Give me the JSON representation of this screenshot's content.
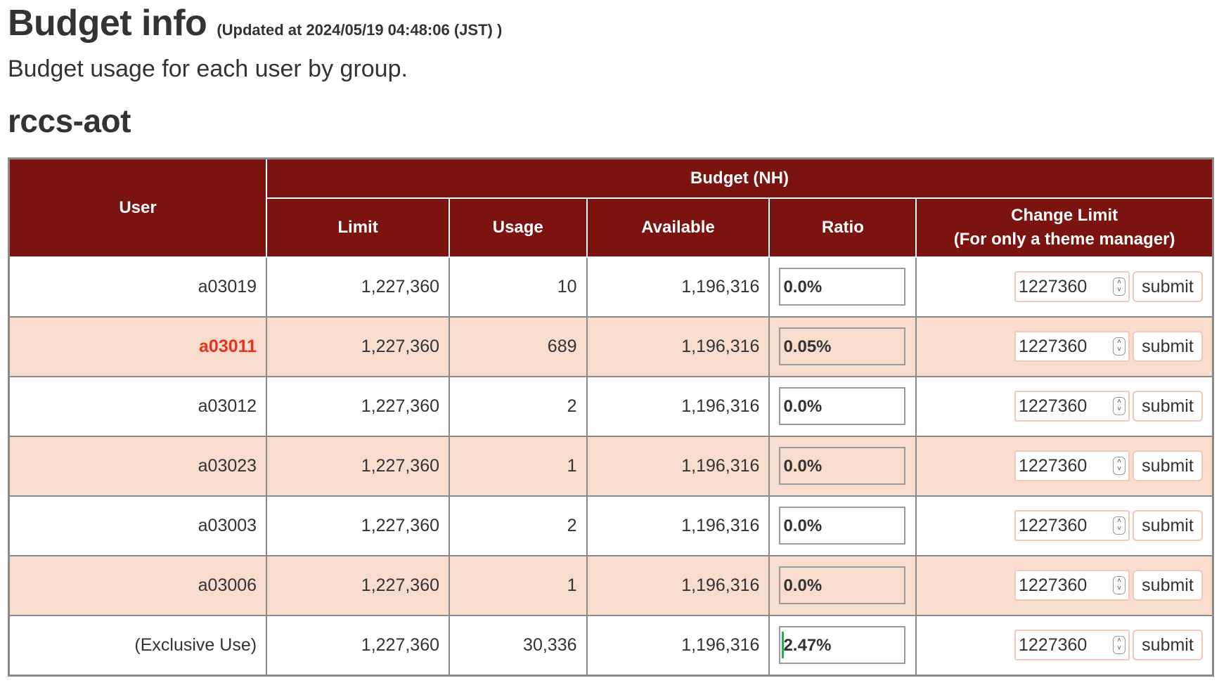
{
  "header": {
    "title": "Budget info",
    "updated": "(Updated at 2024/05/19 04:48:06 (JST) )",
    "subtitle": "Budget usage for each user by group."
  },
  "group": {
    "name": "rccs-aot"
  },
  "table": {
    "headers": {
      "user": "User",
      "budget": "Budget (NH)",
      "limit": "Limit",
      "usage": "Usage",
      "available": "Available",
      "ratio": "Ratio",
      "change_limit_line1": "Change Limit",
      "change_limit_line2": "(For only a theme manager)"
    },
    "submit_label": "submit",
    "rows": [
      {
        "user": "a03019",
        "limit": "1,227,360",
        "usage": "10",
        "available": "1,196,316",
        "ratio": "0.0%",
        "ratio_value": 0.0,
        "input_value": "1227360"
      },
      {
        "user": "a03011",
        "limit": "1,227,360",
        "usage": "689",
        "available": "1,196,316",
        "ratio": "0.05%",
        "ratio_value": 0.05,
        "input_value": "1227360"
      },
      {
        "user": "a03012",
        "limit": "1,227,360",
        "usage": "2",
        "available": "1,196,316",
        "ratio": "0.0%",
        "ratio_value": 0.0,
        "input_value": "1227360"
      },
      {
        "user": "a03023",
        "limit": "1,227,360",
        "usage": "1",
        "available": "1,196,316",
        "ratio": "0.0%",
        "ratio_value": 0.0,
        "input_value": "1227360"
      },
      {
        "user": "a03003",
        "limit": "1,227,360",
        "usage": "2",
        "available": "1,196,316",
        "ratio": "0.0%",
        "ratio_value": 0.0,
        "input_value": "1227360"
      },
      {
        "user": "a03006",
        "limit": "1,227,360",
        "usage": "1",
        "available": "1,196,316",
        "ratio": "0.0%",
        "ratio_value": 0.0,
        "input_value": "1227360"
      },
      {
        "user": "(Exclusive Use)",
        "limit": "1,227,360",
        "usage": "30,336",
        "available": "1,196,316",
        "ratio": "2.47%",
        "ratio_value": 2.47,
        "input_value": "1227360"
      }
    ]
  },
  "colors": {
    "header_bg": "#7b1410",
    "alt_row_bg": "#f8dccd",
    "highlight_user": "#e8321f",
    "ratio_bar": "#22b24a"
  },
  "icons": {
    "spinner": "number-spinner-icon"
  }
}
